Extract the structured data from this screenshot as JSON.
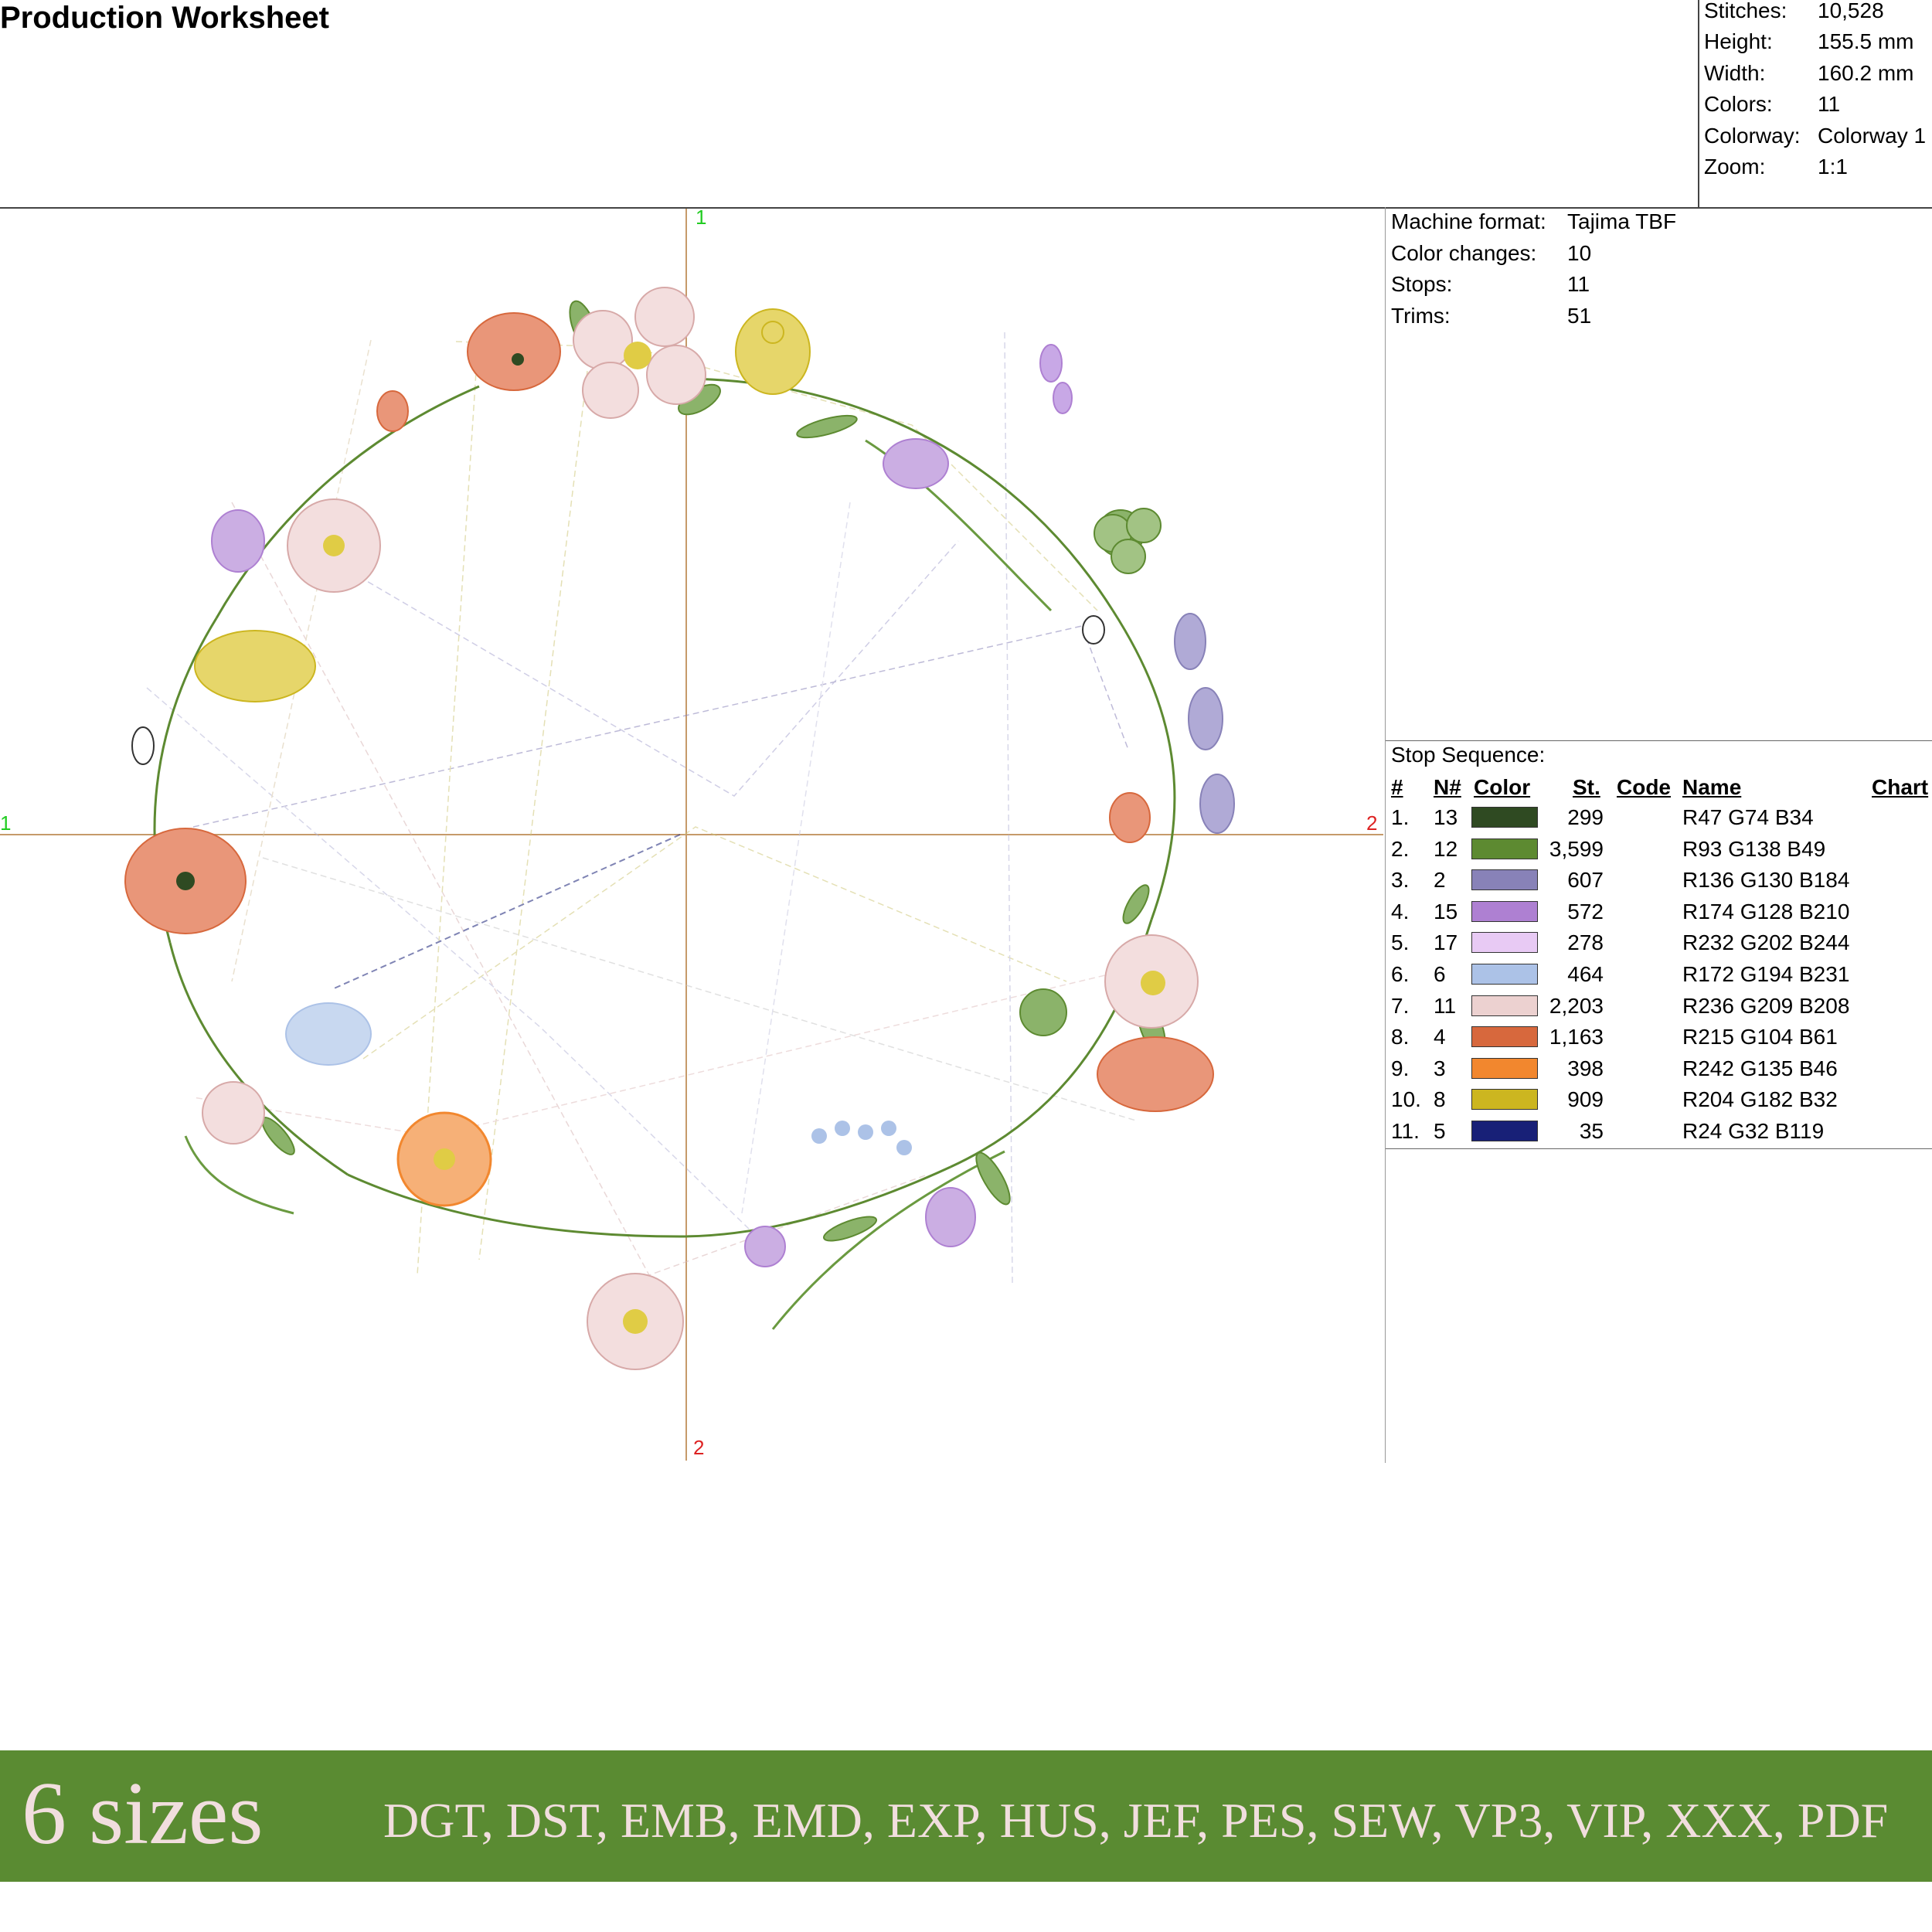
{
  "title": "Production Worksheet",
  "stats": [
    {
      "label": "Stitches:",
      "value": "10,528"
    },
    {
      "label": "Height:",
      "value": "155.5 mm"
    },
    {
      "label": "Width:",
      "value": "160.2 mm"
    },
    {
      "label": "Colors:",
      "value": "11"
    },
    {
      "label": "Colorway:",
      "value": "Colorway 1"
    },
    {
      "label": "Zoom:",
      "value": "1:1"
    }
  ],
  "machine": [
    {
      "label": "Machine format:",
      "value": "Tajima TBF"
    },
    {
      "label": "Color changes:",
      "value": "10"
    },
    {
      "label": "Stops:",
      "value": "11"
    },
    {
      "label": "Trims:",
      "value": "51"
    }
  ],
  "axis_labels": {
    "top": "1",
    "left": "1",
    "right": "2",
    "bottom": "2"
  },
  "stop_sequence": {
    "title": "Stop Sequence:",
    "headers": {
      "num": "#",
      "needle": "N#",
      "color": "Color",
      "stitches": "St.",
      "code": "Code",
      "name": "Name",
      "chart": "Chart"
    },
    "rows": [
      {
        "num": "1.",
        "needle": "13",
        "color": "#2f4a22",
        "stitches": "299",
        "name": "R47 G74 B34"
      },
      {
        "num": "2.",
        "needle": "12",
        "color": "#5d8a31",
        "stitches": "3,599",
        "name": "R93 G138 B49"
      },
      {
        "num": "3.",
        "needle": "2",
        "color": "#8882b8",
        "stitches": "607",
        "name": "R136 G130 B184"
      },
      {
        "num": "4.",
        "needle": "15",
        "color": "#ae80d2",
        "stitches": "572",
        "name": "R174 G128 B210"
      },
      {
        "num": "5.",
        "needle": "17",
        "color": "#e8caf4",
        "stitches": "278",
        "name": "R232 G202 B244"
      },
      {
        "num": "6.",
        "needle": "6",
        "color": "#acc2e7",
        "stitches": "464",
        "name": "R172 G194 B231"
      },
      {
        "num": "7.",
        "needle": "11",
        "color": "#ecd1d0",
        "stitches": "2,203",
        "name": "R236 G209 B208"
      },
      {
        "num": "8.",
        "needle": "4",
        "color": "#d7683d",
        "stitches": "1,163",
        "name": "R215 G104 B61"
      },
      {
        "num": "9.",
        "needle": "3",
        "color": "#f2872e",
        "stitches": "398",
        "name": "R242 G135 B46"
      },
      {
        "num": "10.",
        "needle": "8",
        "color": "#ccb620",
        "stitches": "909",
        "name": "R204 G182 B32"
      },
      {
        "num": "11.",
        "needle": "5",
        "color": "#182077",
        "stitches": "35",
        "name": "R24 G32 B119"
      }
    ]
  },
  "banner": {
    "sizes": "6 sizes",
    "formats": "DGT, DST, EMB, EMD, EXP, HUS, JEF, PES, SEW, VP3, VIP, XXX, PDF",
    "background": "#5a8b32",
    "text_color": "#f1dede"
  }
}
